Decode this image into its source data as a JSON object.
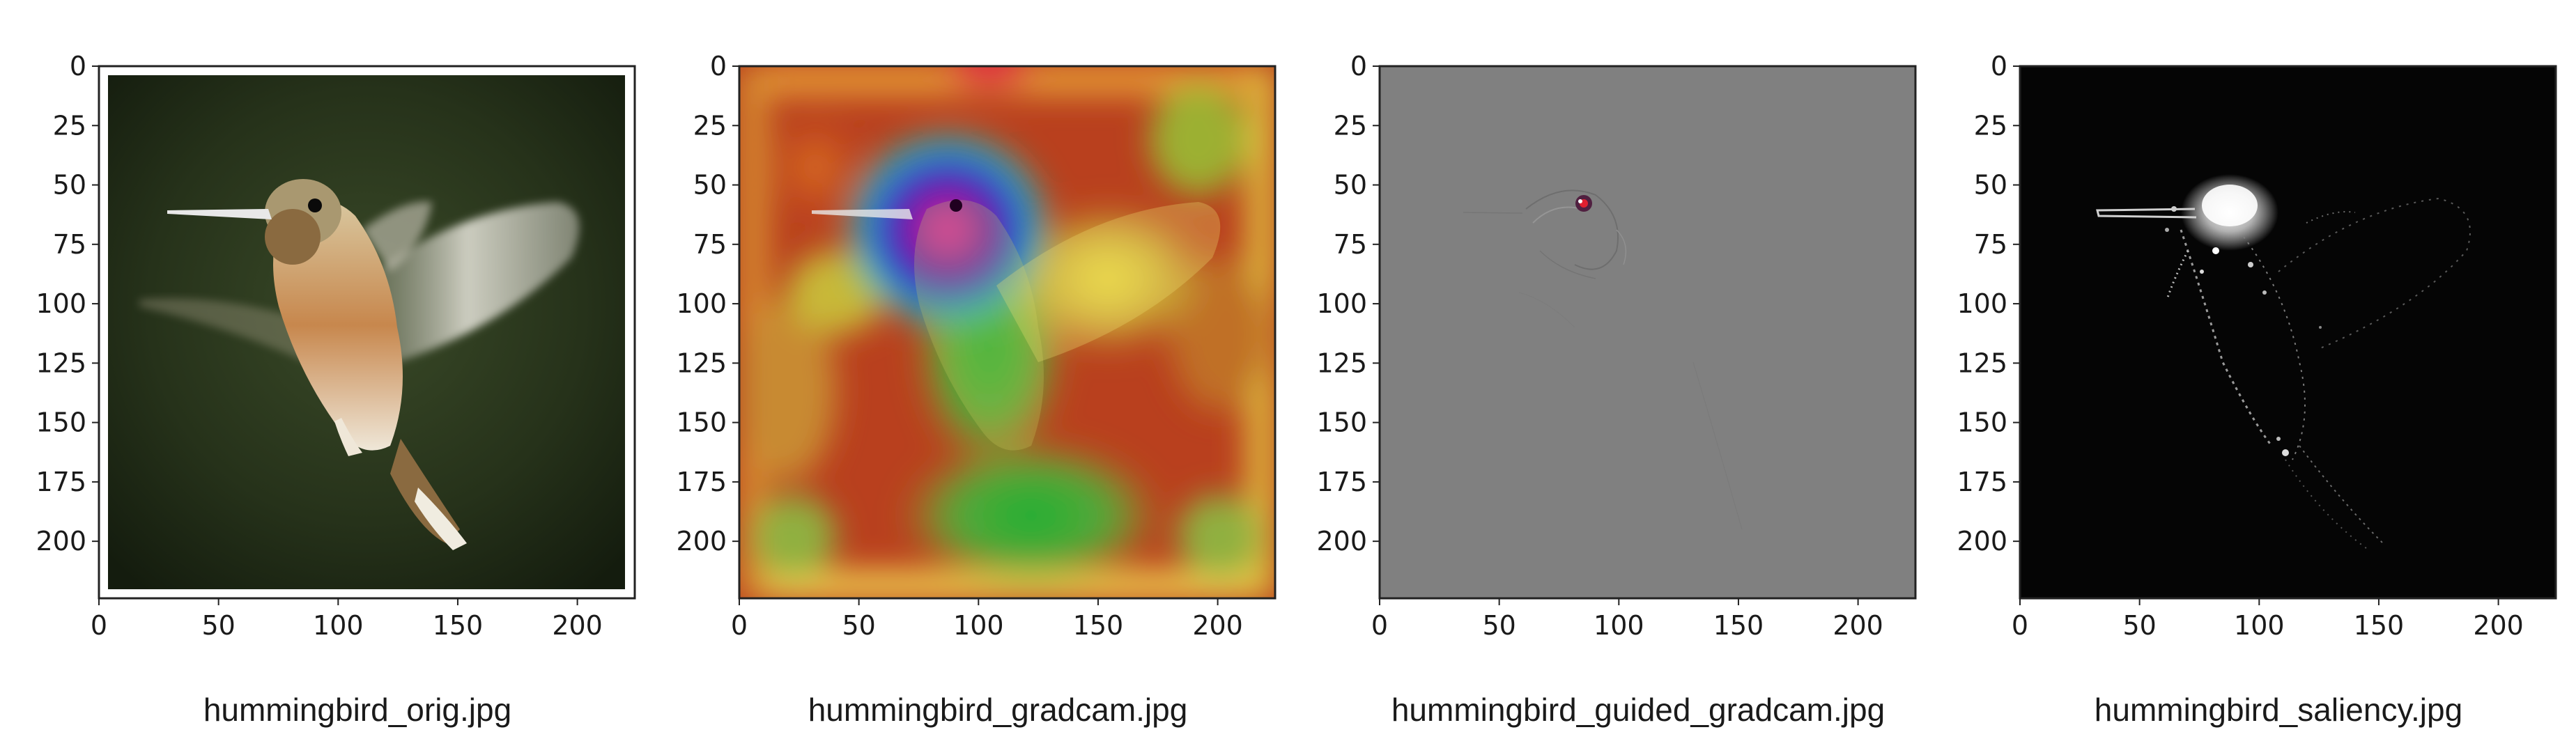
{
  "panels": [
    {
      "caption": "hummingbird_orig.jpg",
      "visualization": "original photo",
      "x_ticks": [
        "0",
        "50",
        "100",
        "150",
        "200"
      ],
      "y_ticks": [
        "0",
        "25",
        "50",
        "75",
        "100",
        "125",
        "150",
        "175",
        "200"
      ]
    },
    {
      "caption": "hummingbird_gradcam.jpg",
      "visualization": "gradcam heatmap overlay",
      "x_ticks": [
        "0",
        "50",
        "100",
        "150",
        "200"
      ],
      "y_ticks": [
        "0",
        "25",
        "50",
        "75",
        "100",
        "125",
        "150",
        "175",
        "200"
      ]
    },
    {
      "caption": "hummingbird_guided_gradcam.jpg",
      "visualization": "guided gradcam",
      "x_ticks": [
        "0",
        "50",
        "100",
        "150",
        "200"
      ],
      "y_ticks": [
        "0",
        "25",
        "50",
        "75",
        "100",
        "125",
        "150",
        "175",
        "200"
      ]
    },
    {
      "caption": "hummingbird_saliency.jpg",
      "visualization": "saliency map",
      "x_ticks": [
        "0",
        "50",
        "100",
        "150",
        "200"
      ],
      "y_ticks": [
        "0",
        "25",
        "50",
        "75",
        "100",
        "125",
        "150",
        "175",
        "200"
      ]
    }
  ],
  "colors": {
    "orig_background": "#24301a",
    "guided_background": "#808080",
    "saliency_background": "#050505",
    "heatmap_base": "#b8361c",
    "axis": "#222222"
  }
}
